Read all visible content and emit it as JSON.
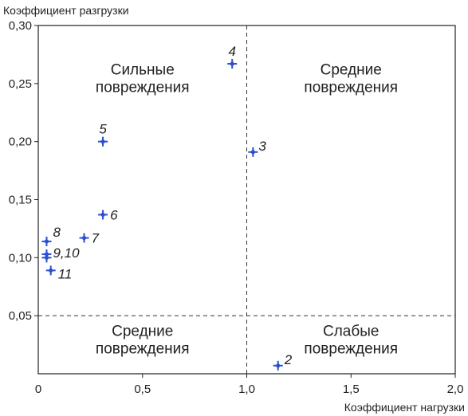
{
  "chart_data": {
    "type": "scatter",
    "title": "",
    "ylabel": "Коэффициент разгрузки",
    "xlabel": "Коэффициент нагрузки",
    "xlim": [
      0,
      2.0
    ],
    "ylim": [
      0,
      0.3
    ],
    "x_ticks": [
      "0,5",
      "1,0",
      "1,5",
      "2,0"
    ],
    "x_ticks_values": [
      0.5,
      1.0,
      1.5,
      2.0
    ],
    "x_origin_label": "0",
    "y_ticks": [
      "0,05",
      "0,10",
      "0,15",
      "0,20",
      "0,25",
      "0,30"
    ],
    "y_ticks_values": [
      0.05,
      0.1,
      0.15,
      0.2,
      0.25,
      0.3
    ],
    "thresholds": {
      "x": 1.0,
      "y": 0.05
    },
    "regions": [
      {
        "line1": "Сильные",
        "line2": "повреждения",
        "x": 0.5,
        "y": 0.255
      },
      {
        "line1": "Средние",
        "line2": "повреждения",
        "x": 1.5,
        "y": 0.255
      },
      {
        "line1": "Средние",
        "line2": "повреждения",
        "x": 0.5,
        "y": 0.03
      },
      {
        "line1": "Слабые",
        "line2": "повреждения",
        "x": 1.5,
        "y": 0.03
      }
    ],
    "points": [
      {
        "label": "2",
        "x": 1.15,
        "y": 0.007
      },
      {
        "label": "3",
        "x": 1.03,
        "y": 0.191
      },
      {
        "label": "4",
        "x": 0.93,
        "y": 0.267
      },
      {
        "label": "5",
        "x": 0.31,
        "y": 0.2
      },
      {
        "label": "6",
        "x": 0.31,
        "y": 0.137
      },
      {
        "label": "7",
        "x": 0.22,
        "y": 0.117
      },
      {
        "label": "8",
        "x": 0.04,
        "y": 0.114
      },
      {
        "label": "9,10",
        "x": 0.04,
        "y": 0.103
      },
      {
        "label": "",
        "x": 0.04,
        "y": 0.1
      },
      {
        "label": "11",
        "x": 0.06,
        "y": 0.089
      }
    ],
    "marker_color": "#2a4fd0",
    "grid": false,
    "legend": "none"
  }
}
